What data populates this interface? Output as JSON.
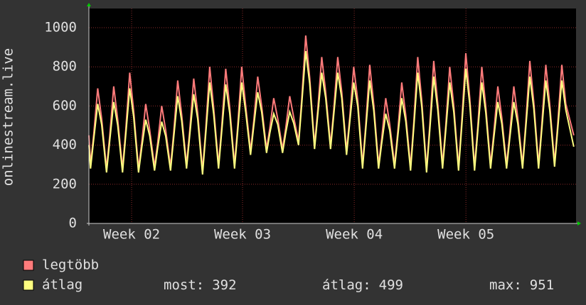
{
  "chart_data": {
    "type": "line",
    "y_label": "onlinestream.live",
    "x": [
      0,
      0.1,
      0.3,
      0.55,
      0.8,
      1.1,
      1.3,
      1.55,
      1.8,
      2.1,
      2.3,
      2.55,
      2.8,
      3.1,
      3.3,
      3.55,
      3.8,
      4.1,
      4.3,
      4.55,
      4.8,
      5.1,
      5.3,
      5.55,
      5.8,
      6.1,
      6.3,
      6.55,
      6.8,
      7.1,
      7.3,
      7.55,
      7.8,
      8.1,
      8.3,
      8.55,
      8.8,
      9.1,
      9.3,
      9.55,
      9.8,
      10.1,
      10.3,
      10.55,
      10.8,
      11.1,
      11.3,
      11.55,
      11.8,
      12.1,
      12.3,
      12.55,
      12.8,
      13.1,
      13.3,
      13.55,
      13.8,
      14.1,
      14.3,
      14.55,
      14.8,
      15.1,
      15.3,
      15.55,
      15.8,
      16.1,
      16.3,
      16.55,
      16.8,
      17.1,
      17.3,
      17.55,
      17.8,
      18.1,
      18.3,
      18.55,
      18.8,
      19.1,
      19.3,
      19.55,
      19.8,
      20.1,
      20.3,
      20.55,
      20.8,
      21.1,
      21.3,
      21.55,
      21.8,
      22.1,
      22.3,
      22.55,
      22.8,
      23.1,
      23.3,
      23.55,
      23.8,
      24.1,
      24.3,
      24.55,
      24.8,
      25.1,
      25.3,
      25.55,
      25.8,
      26.1,
      26.3,
      26.55,
      26.8,
      27.1,
      27.3,
      27.55,
      27.8,
      28.1,
      28.3,
      28.55,
      28.8,
      29.1,
      29.3,
      29.55,
      29.8,
      30.3
    ],
    "series": [
      {
        "name": "legtöbb",
        "color": "#ff7b7b",
        "values": [
          450,
          300,
          456,
          690,
          534,
          280,
          448,
          700,
          532,
          280,
          476,
          770,
          574,
          280,
          412,
          610,
          478,
          290,
          414,
          600,
          476,
          290,
          466,
          730,
          554,
          300,
          476,
          740,
          564,
          270,
          482,
          800,
          588,
          300,
          496,
          790,
          594,
          300,
          500,
          800,
          600,
          370,
          522,
          750,
          598,
          380,
          484,
          640,
          536,
          380,
          488,
          650,
          542,
          420,
          636,
          960,
          744,
          400,
          580,
          850,
          670,
          400,
          580,
          850,
          670,
          370,
          542,
          800,
          628,
          300,
          504,
          810,
          606,
          300,
          436,
          640,
          504,
          300,
          468,
          720,
          552,
          290,
          514,
          850,
          626,
          280,
          500,
          830,
          610,
          300,
          500,
          800,
          600,
          290,
          522,
          870,
          638,
          290,
          494,
          800,
          596,
          300,
          460,
          700,
          540,
          300,
          460,
          700,
          540,
          300,
          512,
          830,
          618,
          300,
          504,
          810,
          606,
          310,
          510,
          810,
          610,
          450
        ]
      },
      {
        "name": "átlag",
        "color": "#ffff80",
        "values": [
          400,
          280,
          431,
          610,
          504,
          260,
          423,
          620,
          502,
          260,
          451,
          690,
          544,
          260,
          387,
          530,
          448,
          270,
          389,
          520,
          446,
          270,
          441,
          650,
          524,
          280,
          451,
          660,
          534,
          250,
          457,
          720,
          558,
          280,
          471,
          710,
          564,
          280,
          475,
          720,
          570,
          350,
          497,
          670,
          568,
          360,
          459,
          560,
          506,
          360,
          463,
          570,
          512,
          400,
          611,
          880,
          714,
          380,
          555,
          770,
          640,
          380,
          555,
          770,
          640,
          350,
          517,
          720,
          598,
          280,
          479,
          730,
          576,
          280,
          411,
          560,
          474,
          280,
          443,
          640,
          522,
          270,
          489,
          770,
          596,
          260,
          475,
          750,
          580,
          280,
          475,
          720,
          570,
          270,
          497,
          790,
          608,
          270,
          469,
          720,
          566,
          280,
          435,
          620,
          510,
          280,
          435,
          620,
          510,
          280,
          487,
          750,
          588,
          280,
          479,
          730,
          576,
          290,
          485,
          730,
          580,
          392
        ]
      }
    ],
    "xlim": [
      0,
      30.44
    ],
    "xticks": [
      {
        "value": 2.67,
        "label": "Week 02"
      },
      {
        "value": 9.6,
        "label": "Week 03"
      },
      {
        "value": 16.58,
        "label": "Week 04"
      },
      {
        "value": 23.56,
        "label": "Week 05"
      }
    ],
    "ylim": [
      0,
      1087
    ],
    "yticks": [
      0,
      200,
      400,
      600,
      800,
      1000
    ],
    "grid": true,
    "stats": [
      {
        "label": "most:",
        "value": 392
      },
      {
        "label": "átlag:",
        "value": 499
      },
      {
        "label": "max:",
        "value": 951
      }
    ]
  }
}
